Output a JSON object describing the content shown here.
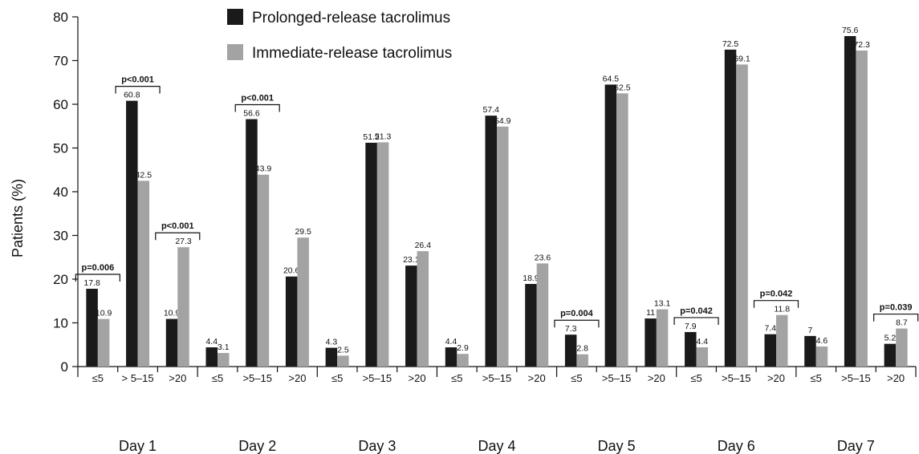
{
  "chart_data": {
    "type": "bar",
    "title": "",
    "xlabel": "",
    "ylabel": "Patients (%)",
    "ylim": [
      0,
      80
    ],
    "yticks": [
      0,
      10,
      20,
      30,
      40,
      50,
      60,
      70,
      80
    ],
    "grid": false,
    "legend_position": "top",
    "series": [
      {
        "name": "Prolonged-release tacrolimus",
        "color": "#1a1a1a"
      },
      {
        "name": "Immediate-release tacrolimus",
        "color": "#a3a3a3"
      }
    ],
    "groups": [
      {
        "label": "Day 1",
        "categories": [
          "≤5",
          "> 5–15",
          ">20"
        ],
        "values": [
          [
            17.8,
            10.9
          ],
          [
            60.8,
            42.5
          ],
          [
            10.9,
            27.3
          ]
        ],
        "pvalues": [
          "p=0.006",
          "p<0.001",
          "p<0.001"
        ]
      },
      {
        "label": "Day 2",
        "categories": [
          "≤5",
          ">5–15",
          ">20"
        ],
        "values": [
          [
            4.4,
            3.1
          ],
          [
            56.6,
            43.9
          ],
          [
            20.6,
            29.5
          ]
        ],
        "pvalues": [
          "",
          "p<0.001",
          ""
        ]
      },
      {
        "label": "Day 3",
        "categories": [
          "≤5",
          ">5–15",
          ">20"
        ],
        "values": [
          [
            4.3,
            2.5
          ],
          [
            51.2,
            51.3
          ],
          [
            23.1,
            26.4
          ]
        ],
        "pvalues": [
          "",
          "",
          ""
        ]
      },
      {
        "label": "Day 4",
        "categories": [
          "≤5",
          ">5–15",
          ">20"
        ],
        "values": [
          [
            4.4,
            2.9
          ],
          [
            57.4,
            54.9
          ],
          [
            18.9,
            23.6
          ]
        ],
        "pvalues": [
          "",
          "",
          ""
        ]
      },
      {
        "label": "Day 5",
        "categories": [
          "≤5",
          ">5–15",
          ">20"
        ],
        "values": [
          [
            7.3,
            2.8
          ],
          [
            64.5,
            62.5
          ],
          [
            11.0,
            13.1
          ]
        ],
        "pvalues": [
          "p=0.004",
          "",
          ""
        ]
      },
      {
        "label": "Day 6",
        "categories": [
          "≤5",
          ">5–15",
          ">20"
        ],
        "values": [
          [
            7.9,
            4.4
          ],
          [
            72.5,
            69.1
          ],
          [
            7.4,
            11.8
          ]
        ],
        "pvalues": [
          "p=0.042",
          "",
          "p=0.042"
        ]
      },
      {
        "label": "Day 7",
        "categories": [
          "≤5",
          ">5–15",
          ">20"
        ],
        "values": [
          [
            7.0,
            4.6
          ],
          [
            75.6,
            72.3
          ],
          [
            5.2,
            8.7
          ]
        ],
        "pvalues": [
          "",
          "",
          "p=0.039"
        ]
      }
    ]
  }
}
